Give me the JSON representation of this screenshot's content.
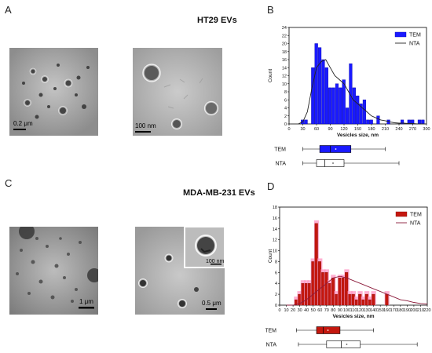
{
  "panels": {
    "A": {
      "letter": "A",
      "title": "HT29 EVs",
      "scale_left": "0.2  μm",
      "scale_right": "100  nm"
    },
    "B": {
      "letter": "B"
    },
    "C": {
      "letter": "C",
      "title": "MDA-MB-231 EVs",
      "scale_left": "1 μm",
      "scale_right": "0.5 μm",
      "scale_inset": "100 nm"
    },
    "D": {
      "letter": "D"
    }
  },
  "colors": {
    "B_bar": "#1a1aff",
    "B_bar_edge": "#0000aa",
    "D_bar": "#c4170e",
    "D_bar_edge": "#8a0f08",
    "D_errbar": "#ff9cc7",
    "D_tem_box": "#c4170e",
    "D_curve": "#8b1a3a",
    "B_tem_box": "#1a1aff"
  },
  "chart_data": [
    {
      "type": "bar",
      "panel": "B",
      "xlabel": "Vesicles size, nm",
      "ylabel": "Count",
      "xlim": [
        0,
        300
      ],
      "ylim": [
        0,
        24
      ],
      "xticks": [
        "0",
        "30",
        "60",
        "90",
        "120",
        "150",
        "180",
        "210",
        "240",
        "270",
        "300"
      ],
      "yticks": [
        "0",
        "2",
        "4",
        "6",
        "8",
        "10",
        "12",
        "14",
        "16",
        "18",
        "20",
        "22",
        "24"
      ],
      "legend": [
        "TEM",
        "NTA"
      ],
      "legend_position": "top-right",
      "bin_width": 7.5,
      "bins_x": [
        30,
        37.5,
        45,
        52.5,
        60,
        67.5,
        75,
        82.5,
        90,
        97.5,
        105,
        112.5,
        120,
        127.5,
        135,
        142.5,
        150,
        157.5,
        165,
        172.5,
        180,
        187.5,
        195,
        202.5,
        210,
        217.5,
        225,
        232.5,
        240,
        247.5,
        255,
        262.5,
        270,
        277.5,
        285,
        292.5
      ],
      "series": [
        {
          "name": "TEM",
          "type": "bar",
          "values": [
            1,
            1,
            0,
            14,
            20,
            19,
            16,
            14,
            9,
            9,
            10,
            9,
            11,
            4,
            15,
            9,
            7,
            5,
            6,
            1,
            1,
            0,
            2,
            0,
            0,
            1,
            0,
            0,
            0,
            1,
            0,
            1,
            1,
            0,
            1,
            1
          ]
        },
        {
          "name": "NTA",
          "type": "line",
          "x": [
            20,
            30,
            40,
            50,
            60,
            70,
            80,
            90,
            100,
            110,
            120,
            130,
            140,
            150,
            160,
            170,
            180,
            190,
            200,
            210,
            220,
            230,
            240,
            250,
            260,
            270,
            280,
            290,
            300
          ],
          "values": [
            0,
            0.5,
            3,
            9,
            14,
            15.5,
            16,
            14,
            12,
            11,
            10,
            8,
            6,
            5,
            4,
            3,
            2,
            1.5,
            1,
            0.8,
            0.5,
            0.3,
            0.2,
            0.2,
            0.1,
            0.1,
            0,
            0,
            0
          ]
        }
      ],
      "boxplots": [
        {
          "name": "TEM",
          "min": 30,
          "q1": 67,
          "median": 90,
          "mean": 102,
          "q3": 135,
          "max": 210
        },
        {
          "name": "NTA",
          "min": 30,
          "q1": 60,
          "median": 78,
          "mean": 96,
          "q3": 120,
          "max": 240
        }
      ]
    },
    {
      "type": "bar",
      "panel": "D",
      "xlabel": "Vesicles size, nm",
      "ylabel": "Count",
      "xlim": [
        0,
        220
      ],
      "ylim": [
        0,
        18
      ],
      "xticks": [
        "0",
        "10",
        "20",
        "30",
        "40",
        "50",
        "60",
        "70",
        "80",
        "90",
        "100",
        "110",
        "120",
        "130",
        "140",
        "150",
        "160",
        "170",
        "180",
        "190",
        "200",
        "210",
        "220"
      ],
      "yticks": [
        "0",
        "2",
        "4",
        "6",
        "8",
        "10",
        "12",
        "14",
        "16",
        "18"
      ],
      "legend": [
        "TEM",
        "NTA"
      ],
      "legend_position": "top-right",
      "bin_width": 5,
      "bins_x": [
        20,
        25,
        30,
        35,
        40,
        45,
        50,
        55,
        60,
        65,
        70,
        75,
        80,
        85,
        90,
        95,
        100,
        105,
        110,
        115,
        120,
        125,
        130,
        135,
        140,
        145,
        150,
        155,
        160,
        165
      ],
      "series": [
        {
          "name": "TEM",
          "type": "bar",
          "values": [
            0,
            1,
            2,
            4,
            4,
            4,
            8,
            15,
            8,
            6,
            6,
            4,
            5,
            2,
            5,
            5,
            6,
            2,
            2,
            1,
            2,
            1,
            2,
            1,
            2,
            0,
            0,
            0,
            2,
            0
          ]
        },
        {
          "name": "NTA",
          "type": "line",
          "x": [
            10,
            20,
            30,
            40,
            50,
            60,
            70,
            80,
            90,
            100,
            110,
            120,
            130,
            140,
            150,
            160,
            170,
            180,
            190,
            200,
            210,
            220
          ],
          "values": [
            0,
            0,
            0.3,
            1,
            2,
            3,
            4,
            5,
            5.3,
            5,
            4.5,
            4,
            3.5,
            3,
            2.5,
            2,
            1.5,
            1,
            0.8,
            0.5,
            0.3,
            0.2
          ]
        }
      ],
      "boxplots": [
        {
          "name": "TEM",
          "min": 25,
          "q1": 55,
          "median": 65,
          "mean": 72,
          "q3": 90,
          "max": 140
        },
        {
          "name": "NTA",
          "min": 28,
          "q1": 70,
          "median": 92,
          "mean": 100,
          "q3": 120,
          "max": 205
        }
      ]
    }
  ]
}
